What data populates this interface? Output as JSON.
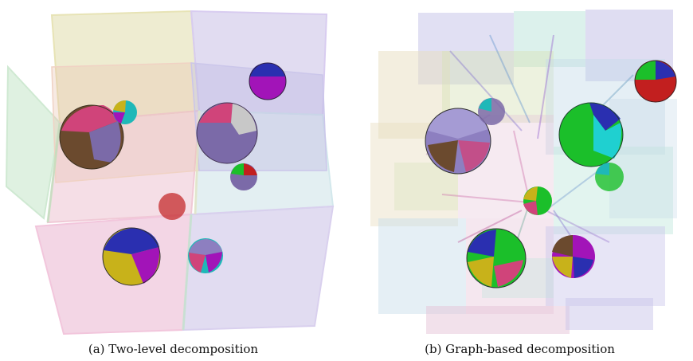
{
  "figure": {
    "panels": [
      {
        "id": "a",
        "caption": "(a) Two-level decomposition"
      },
      {
        "id": "b",
        "caption": "(b) Graph-based decomposition"
      }
    ]
  },
  "colors": {
    "sphere_patches": [
      "#d0447a",
      "#6b4a2e",
      "#7b6aa8",
      "#2a2fb0",
      "#c8b21a",
      "#a214b8",
      "#1fb8b8",
      "#1bbf2a",
      "#c8c8c8",
      "#c21f1f"
    ],
    "cells_a": [
      "#e8b6c8",
      "#c9c0e6",
      "#d9d49a",
      "#bfe3c4",
      "#c7e0e6",
      "#e9c3b0"
    ],
    "cells_b": [
      "#c9c6ea",
      "#bfe6dc",
      "#d7e3b8",
      "#e6c4d8",
      "#e8ddc0",
      "#c6dbe8"
    ]
  }
}
